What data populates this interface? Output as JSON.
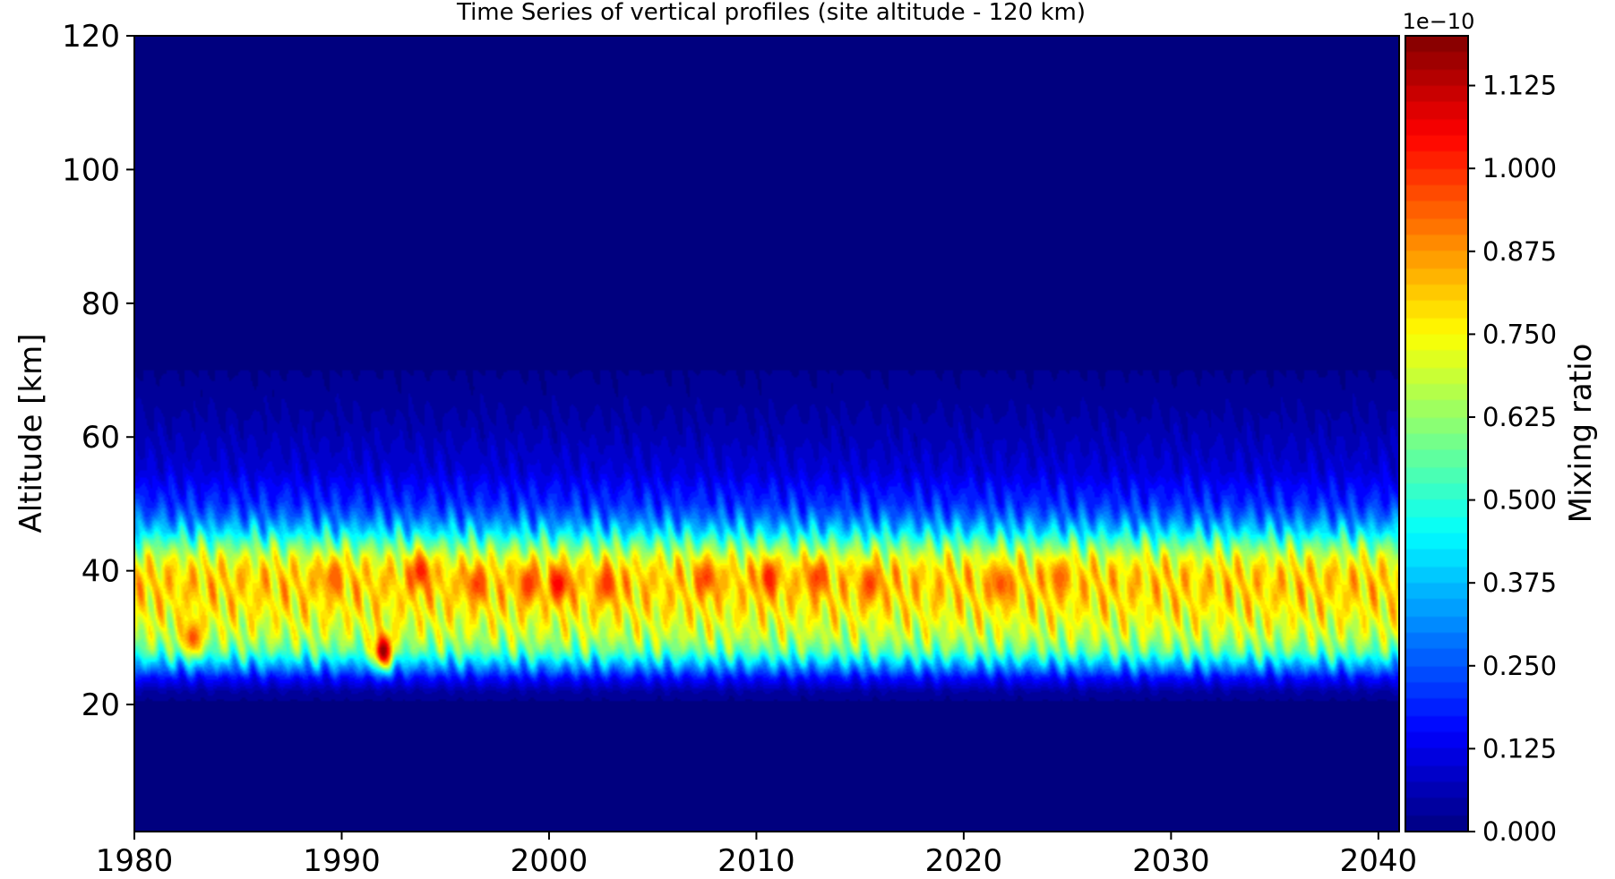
{
  "chart_data": {
    "type": "heatmap",
    "title": "Time Series of vertical profiles (site altitude - 120 km)",
    "xlabel": "",
    "ylabel": "Altitude [km]",
    "xlim": [
      1980,
      2041
    ],
    "ylim": [
      1,
      120
    ],
    "x_ticks": [
      "1980",
      "1990",
      "2000",
      "2010",
      "2020",
      "2030",
      "2040"
    ],
    "y_ticks": [
      "20",
      "40",
      "60",
      "80",
      "100",
      "120"
    ],
    "colorbar": {
      "label": "Mixing ratio",
      "offset_label": "1e−10",
      "colormap": "jet",
      "range": [
        0,
        1.2
      ],
      "ticks": [
        "0.000",
        "0.125",
        "0.250",
        "0.375",
        "0.500",
        "0.625",
        "0.750",
        "0.875",
        "1.000",
        "1.125"
      ]
    },
    "profile": {
      "altitude_km": [
        0,
        18,
        20,
        22,
        24,
        26,
        28,
        30,
        32,
        34,
        36,
        38,
        40,
        42,
        44,
        46,
        48,
        50,
        55,
        60,
        65,
        70,
        75,
        80,
        120
      ],
      "mixing_ratio": [
        0,
        0,
        0.02,
        0.06,
        0.18,
        0.38,
        0.58,
        0.68,
        0.73,
        0.77,
        0.8,
        0.82,
        0.8,
        0.72,
        0.58,
        0.42,
        0.3,
        0.22,
        0.12,
        0.08,
        0.05,
        0.03,
        0.02,
        0,
        0
      ]
    },
    "peak_regions": [
      {
        "year": 1982.8,
        "altitude_km": 30,
        "peak": 0.98
      },
      {
        "year": 1989.6,
        "altitude_km": 39,
        "peak": 0.96
      },
      {
        "year": 1992.0,
        "altitude_km": 28,
        "peak": 1.2
      },
      {
        "year": 1993.8,
        "altitude_km": 40,
        "peak": 1.05
      },
      {
        "year": 1996.5,
        "altitude_km": 38,
        "peak": 1.0
      },
      {
        "year": 1999.0,
        "altitude_km": 38,
        "peak": 1.02
      },
      {
        "year": 2000.5,
        "altitude_km": 38,
        "peak": 1.08
      },
      {
        "year": 2002.8,
        "altitude_km": 38,
        "peak": 1.02
      },
      {
        "year": 2007.6,
        "altitude_km": 39,
        "peak": 1.0
      },
      {
        "year": 2010.6,
        "altitude_km": 39,
        "peak": 1.05
      },
      {
        "year": 2012.9,
        "altitude_km": 39,
        "peak": 1.0
      },
      {
        "year": 2015.5,
        "altitude_km": 38,
        "peak": 1.0
      },
      {
        "year": 2021.8,
        "altitude_km": 38,
        "peak": 0.98
      },
      {
        "year": 2024.6,
        "altitude_km": 39,
        "peak": 0.95
      }
    ]
  }
}
